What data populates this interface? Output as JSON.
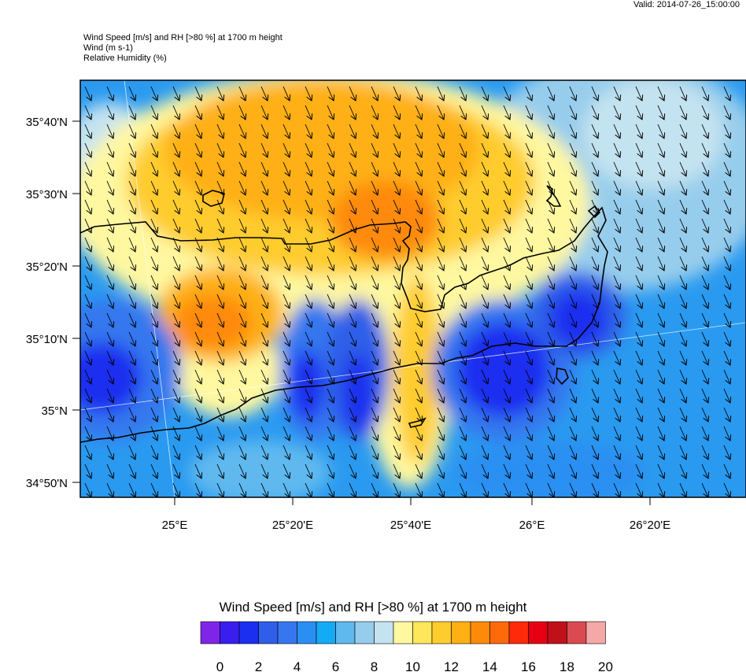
{
  "valid_time": "Valid: 2014-07-26_15:00:00",
  "header_lines": [
    "Wind Speed [m/s] and RH [>80 %] at 1700 m height",
    "Wind   (m s-1)",
    "Relative Humidity   (%)"
  ],
  "axes": {
    "y_labels": [
      "35°40'N",
      "35°30'N",
      "35°20'N",
      "35°10'N",
      "35°N",
      "34°50'N"
    ],
    "x_labels": [
      "25°E",
      "25°20'E",
      "25°40'E",
      "26°E",
      "26°20'E"
    ]
  },
  "colorbar": {
    "title": "Wind Speed [m/s] and RH [>80 %] at 1700 m height",
    "tick_labels": [
      "0",
      "2",
      "4",
      "6",
      "8",
      "10",
      "12",
      "14",
      "16",
      "18",
      "20"
    ],
    "colors": [
      "#7f25e8",
      "#3a1ef0",
      "#1b2ff0",
      "#2f5ee8",
      "#3677ef",
      "#2a8ff2",
      "#14abf5",
      "#5fb9ef",
      "#97cdec",
      "#c4e3f0",
      "#fff8a0",
      "#ffe65a",
      "#ffcc2e",
      "#ffb012",
      "#ff8a0a",
      "#ff6a08",
      "#ff2a0a",
      "#e60012",
      "#c0101a",
      "#db4a50",
      "#f5a8a8"
    ]
  },
  "map": {
    "background_color": "#2a9af0",
    "coastline_color": "#000000",
    "arrow_direction": "south-southeast"
  }
}
